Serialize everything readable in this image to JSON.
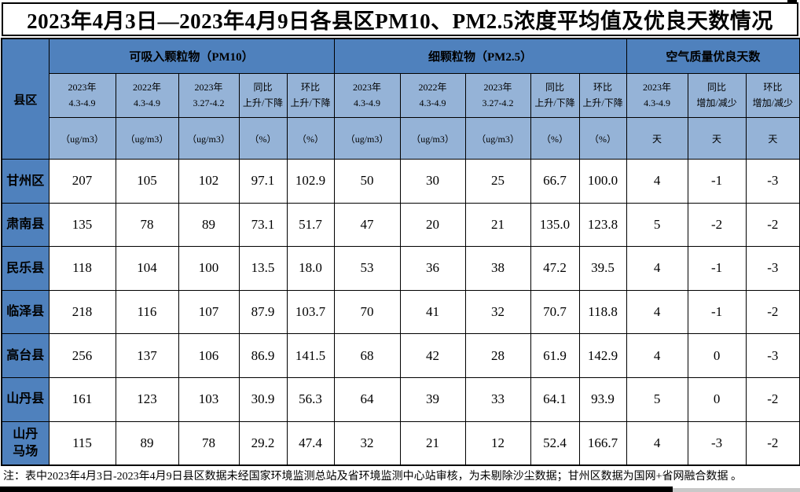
{
  "title": "2023年4月3日—2023年4月9日各县区PM10、PM2.5浓度平均值及优良天数情况",
  "table": {
    "corner_label": "县区",
    "groups": [
      {
        "label": "可吸入颗粒物（PM10）"
      },
      {
        "label": "细颗粒物（PM2.5）"
      },
      {
        "label": "空气质量优良天数"
      }
    ],
    "columns": [
      {
        "header": "2023年\n4.3-4.9",
        "unit": "（ug/m3）"
      },
      {
        "header": "2022年\n4.3-4.9",
        "unit": "（ug/m3）"
      },
      {
        "header": "2023年\n3.27-4.2",
        "unit": "（ug/m3）"
      },
      {
        "header": "同比\n上升/下降",
        "unit": "（%）"
      },
      {
        "header": "环比\n上升/下降",
        "unit": "（%）"
      },
      {
        "header": "2023年\n4.3-4.9",
        "unit": "（ug/m3）"
      },
      {
        "header": "2022年\n4.3-4.9",
        "unit": "（ug/m3）"
      },
      {
        "header": "2023年\n3.27-4.2",
        "unit": "（ug/m3）"
      },
      {
        "header": "同比\n上升/下降",
        "unit": "（%）"
      },
      {
        "header": "环比\n上升/下降",
        "unit": "（%）"
      },
      {
        "header": "2023年\n4.3-4.9",
        "unit": "天"
      },
      {
        "header": "同比\n增加/减少",
        "unit": "天"
      },
      {
        "header": "环比\n增加/减少",
        "unit": "天"
      }
    ],
    "rows": [
      {
        "county": "甘州区",
        "values": [
          "207",
          "105",
          "102",
          "97.1",
          "102.9",
          "50",
          "30",
          "25",
          "66.7",
          "100.0",
          "4",
          "-1",
          "-3"
        ]
      },
      {
        "county": "肃南县",
        "values": [
          "135",
          "78",
          "89",
          "73.1",
          "51.7",
          "47",
          "20",
          "21",
          "135.0",
          "123.8",
          "5",
          "-2",
          "-2"
        ]
      },
      {
        "county": "民乐县",
        "values": [
          "118",
          "104",
          "100",
          "13.5",
          "18.0",
          "53",
          "36",
          "38",
          "47.2",
          "39.5",
          "4",
          "-1",
          "-3"
        ]
      },
      {
        "county": "临泽县",
        "values": [
          "218",
          "116",
          "107",
          "87.9",
          "103.7",
          "70",
          "41",
          "32",
          "70.7",
          "118.8",
          "4",
          "-1",
          "-2"
        ]
      },
      {
        "county": "高台县",
        "values": [
          "256",
          "137",
          "106",
          "86.9",
          "141.5",
          "68",
          "42",
          "28",
          "61.9",
          "142.9",
          "4",
          "0",
          "-3"
        ]
      },
      {
        "county": "山丹县",
        "values": [
          "161",
          "123",
          "103",
          "30.9",
          "56.3",
          "64",
          "39",
          "33",
          "64.1",
          "93.9",
          "5",
          "0",
          "-2"
        ]
      },
      {
        "county": "山丹\n马场",
        "values": [
          "115",
          "89",
          "78",
          "29.2",
          "47.4",
          "32",
          "21",
          "12",
          "52.4",
          "166.7",
          "4",
          "-3",
          "-2"
        ]
      }
    ]
  },
  "footnote": "注：表中2023年4月3日-2023年4月9日县区数据未经国家环境监测总站及省环境监测中心站审核，为未剔除沙尘数据；甘州区数据为国网+省网融合数据 。",
  "colors": {
    "group_header_bg": "#4F81BD",
    "sub_header_bg": "#95B3D7",
    "border": "#000000",
    "cell_bg": "#FFFFFF"
  }
}
